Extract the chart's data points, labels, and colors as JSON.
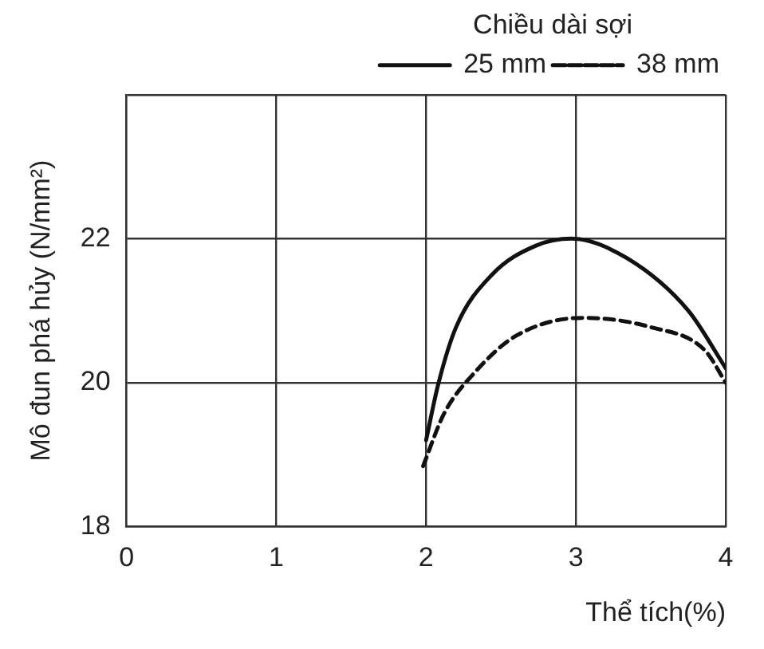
{
  "chart_data": {
    "type": "line",
    "xlabel": "Thể tích(%)",
    "ylabel": "Mô đun phá hủy (N/mm²)",
    "legend_title": "Chiều dài sợi",
    "legend": "top right",
    "grid": true,
    "marker": "none",
    "xlim": [
      0,
      4
    ],
    "xticks": [
      0,
      1,
      2,
      3,
      4
    ],
    "ylim": [
      18,
      24
    ],
    "yticks": [
      18,
      20,
      22,
      {
        "value": 24,
        "label": null
      }
    ],
    "series": [
      {
        "name": "25 mm",
        "color": "#111111",
        "line_style": "solid",
        "x": [
          2.0,
          2.08,
          2.2,
          2.44,
          2.73,
          2.97,
          3.34,
          3.75,
          4.0
        ],
        "values": [
          19.2,
          19.97,
          20.77,
          21.5,
          21.9,
          22.0,
          21.73,
          21.0,
          20.2
        ]
      },
      {
        "name": "38 mm",
        "color": "#111111",
        "line_style": "dashed",
        "x": [
          1.98,
          2.12,
          2.32,
          2.6,
          3.05,
          3.5,
          3.86,
          4.0
        ],
        "values": [
          18.84,
          19.57,
          20.13,
          20.65,
          20.9,
          20.77,
          20.45,
          20.0
        ]
      }
    ]
  }
}
